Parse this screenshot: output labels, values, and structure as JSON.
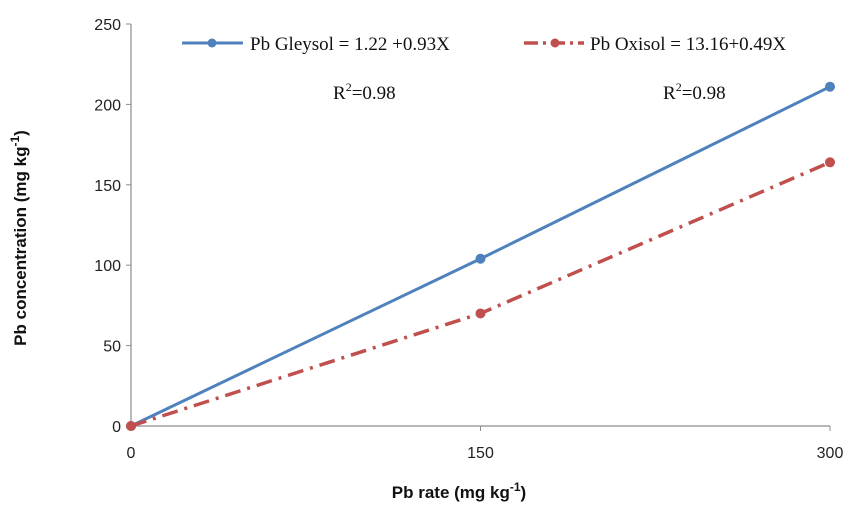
{
  "chart_data": {
    "type": "line",
    "x": [
      0,
      150,
      300
    ],
    "xlabel": "Pb rate (mg kg",
    "xlabel_sup": "-1",
    "xlabel_end": ")",
    "ylabel": "Pb concentration (mg kg",
    "ylabel_sup": "-1",
    "ylabel_end": ")",
    "xlim": [
      0,
      300
    ],
    "ylim": [
      0,
      250
    ],
    "x_ticks": [
      "0",
      "150",
      "300"
    ],
    "y_ticks": [
      "0",
      "50",
      "100",
      "150",
      "200",
      "250"
    ],
    "grid": false,
    "legend_position": "top",
    "series": [
      {
        "name": "Pb Gleysol = 1.22 +0.93X",
        "values": [
          0,
          104,
          211
        ],
        "color": "#4f81bd",
        "style": "solid"
      },
      {
        "name": "Pb Oxisol = 13.16+0.49X",
        "values": [
          0,
          70,
          164
        ],
        "color": "#c0504d",
        "style": "dash-dot"
      }
    ],
    "annotations": [
      {
        "text": "R",
        "sup": "2",
        "after": "=0.98",
        "series": 0
      },
      {
        "text": "R",
        "sup": "2",
        "after": "=0.98",
        "series": 1
      }
    ]
  }
}
